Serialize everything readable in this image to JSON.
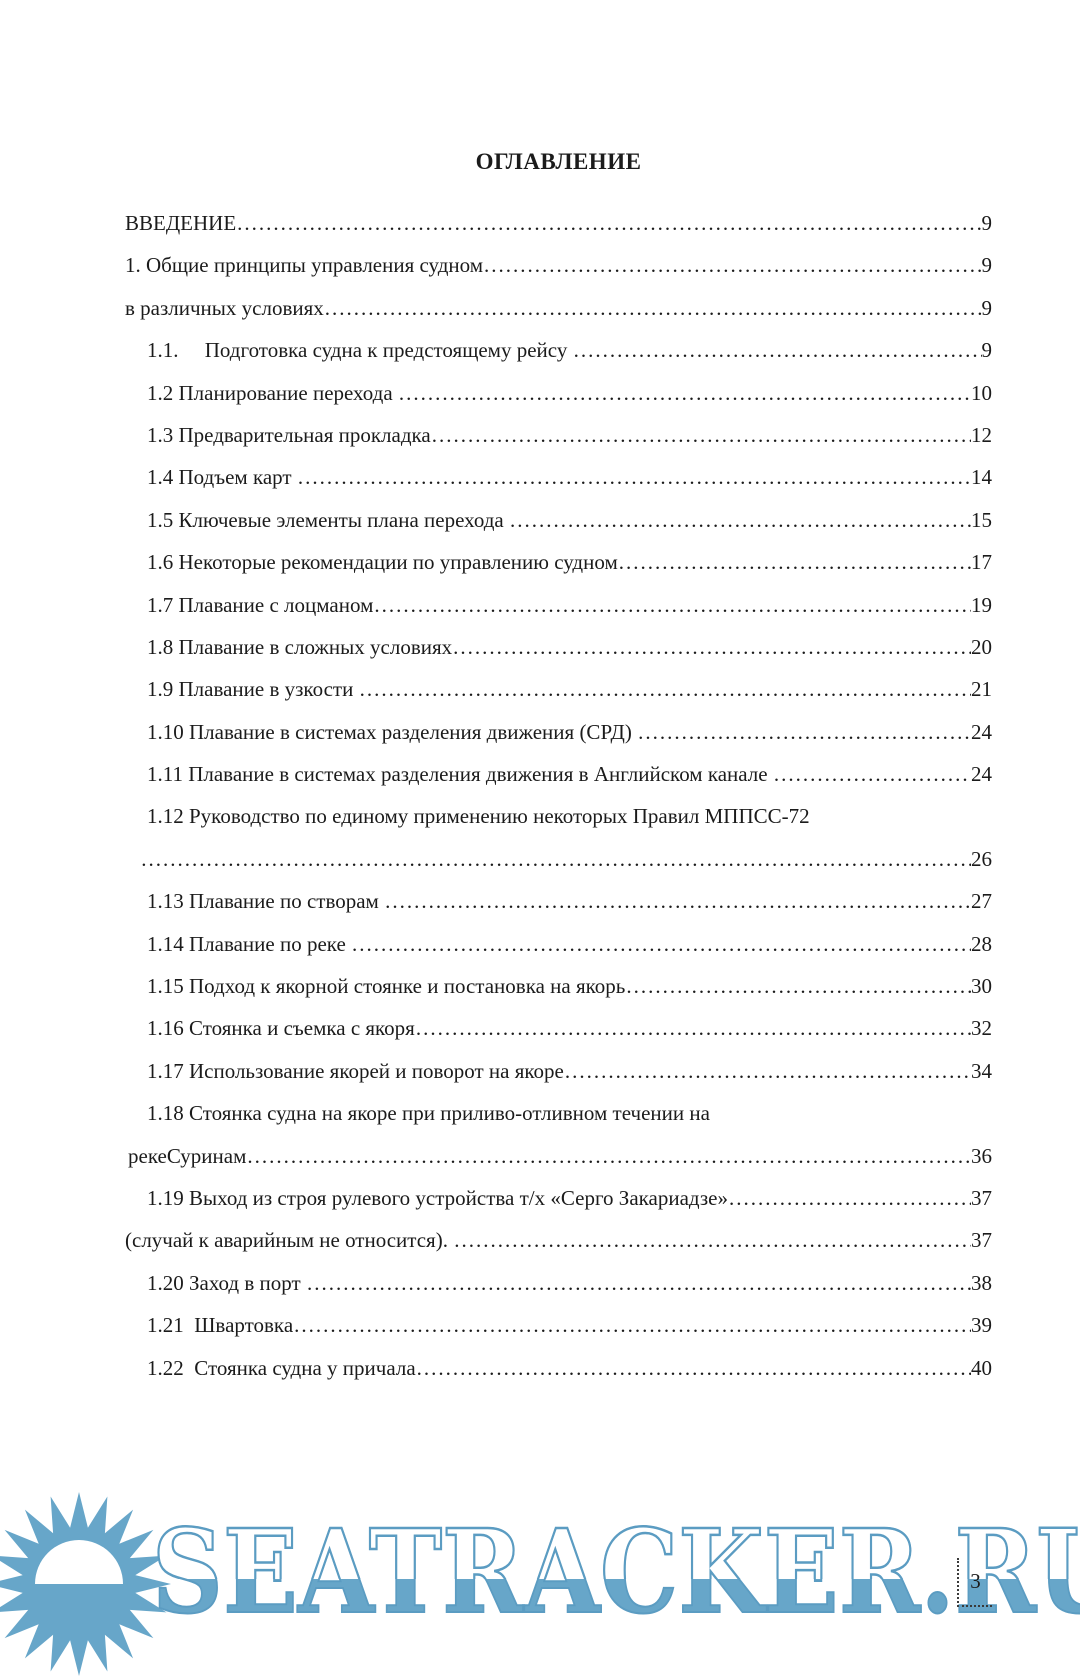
{
  "page": {
    "title": "ОГЛАВЛЕНИЕ",
    "page_number": "3"
  },
  "watermark": {
    "text": "SEATRACKER.RU",
    "color": "#67a6c9",
    "icon": "sun-icon"
  },
  "toc": {
    "entries": [
      {
        "indent": "root",
        "label": "ВВЕДЕНИЕ",
        "page": "9"
      },
      {
        "indent": "root",
        "label": "1. Общие принципы управления судном",
        "page": "9"
      },
      {
        "indent": "root",
        "label": "в различных условиях",
        "page": "9"
      },
      {
        "indent": "sub",
        "label": "1.1.     Подготовка судна к предстоящему рейсу ",
        "page": "9"
      },
      {
        "indent": "sub",
        "label": "1.2 Планирование перехода ",
        "page": "10"
      },
      {
        "indent": "sub",
        "label": "1.3 Предварительная прокладка",
        "page": "12"
      },
      {
        "indent": "sub",
        "label": "1.4 Подъем карт ",
        "page": "14"
      },
      {
        "indent": "sub",
        "label": "1.5 Ключевые элементы плана перехода ",
        "page": "15"
      },
      {
        "indent": "sub",
        "label": "1.6 Некоторые рекомендации по управлению судном",
        "page": "17"
      },
      {
        "indent": "sub",
        "label": "1.7 Плавание с лоцманом",
        "page": "19"
      },
      {
        "indent": "sub",
        "label": "1.8 Плавание в сложных условиях",
        "page": "20"
      },
      {
        "indent": "sub",
        "label": "1.9 Плавание в узкости ",
        "page": "21"
      },
      {
        "indent": "sub",
        "label": "1.10 Плавание в системах разделения движения (СРД) ",
        "page": "24"
      },
      {
        "indent": "sub",
        "label": "1.11 Плавание в системах разделения движения в Английском канале ",
        "page": "24"
      },
      {
        "indent": "sub",
        "label": "1.12 Руководство по единому применению некоторых Правил МППСС-72",
        "page": null
      },
      {
        "indent": "c1",
        "label": " ",
        "page": "26"
      },
      {
        "indent": "sub",
        "label": "1.13 Плавание по створам ",
        "page": "27"
      },
      {
        "indent": "sub",
        "label": "1.14 Плавание по реке ",
        "page": "28"
      },
      {
        "indent": "sub",
        "label": "1.15 Подход к якорной стоянке и постановка на якорь",
        "page": "30"
      },
      {
        "indent": "sub",
        "label": "1.16 Стоянка и съемка с якоря",
        "page": "32"
      },
      {
        "indent": "sub",
        "label": "1.17 Использование якорей и поворот на якоре",
        "page": "34"
      },
      {
        "indent": "sub",
        "label": "1.18 Стоянка судна на якоре при приливо-отливном течении на",
        "page": null
      },
      {
        "indent": "c2",
        "label": "рекеСуринам",
        "page": "36"
      },
      {
        "indent": "sub",
        "label": "1.19 Выход из строя рулевого устройства т/х «Серго Закариадзе»",
        "page": "37"
      },
      {
        "indent": "root",
        "label": "(случай к аварийным не относится). ",
        "page": "37"
      },
      {
        "indent": "sub",
        "label": "1.20 Заход в порт ",
        "page": "38"
      },
      {
        "indent": "sub",
        "label": "1.21  Швартовка",
        "page": "39"
      },
      {
        "indent": "sub",
        "label": "1.22  Стоянка судна у причала",
        "page": "40"
      }
    ]
  }
}
